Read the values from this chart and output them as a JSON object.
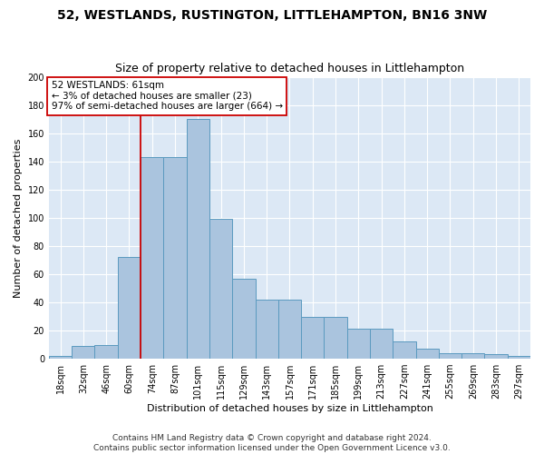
{
  "title": "52, WESTLANDS, RUSTINGTON, LITTLEHAMPTON, BN16 3NW",
  "subtitle": "Size of property relative to detached houses in Littlehampton",
  "xlabel": "Distribution of detached houses by size in Littlehampton",
  "ylabel": "Number of detached properties",
  "footer_line1": "Contains HM Land Registry data © Crown copyright and database right 2024.",
  "footer_line2": "Contains public sector information licensed under the Open Government Licence v3.0.",
  "annotation_line1": "52 WESTLANDS: 61sqm",
  "annotation_line2": "← 3% of detached houses are smaller (23)",
  "annotation_line3": "97% of semi-detached houses are larger (664) →",
  "bin_labels": [
    "18sqm",
    "32sqm",
    "46sqm",
    "60sqm",
    "74sqm",
    "87sqm",
    "101sqm",
    "115sqm",
    "129sqm",
    "143sqm",
    "157sqm",
    "171sqm",
    "185sqm",
    "199sqm",
    "213sqm",
    "227sqm",
    "241sqm",
    "255sqm",
    "269sqm",
    "283sqm",
    "297sqm"
  ],
  "bar_values": [
    2,
    9,
    10,
    72,
    143,
    143,
    170,
    99,
    57,
    42,
    42,
    30,
    30,
    21,
    21,
    12,
    7,
    4,
    4,
    3,
    2
  ],
  "bar_color": "#aac4de",
  "bar_edge_color": "#5a9abf",
  "vline_x_bin": 3.5,
  "vline_color": "#cc0000",
  "background_color": "#dce8f5",
  "grid_color": "#ffffff",
  "ylim": [
    0,
    200
  ],
  "yticks": [
    0,
    20,
    40,
    60,
    80,
    100,
    120,
    140,
    160,
    180,
    200
  ],
  "title_fontsize": 10,
  "subtitle_fontsize": 9,
  "label_fontsize": 8,
  "tick_fontsize": 7,
  "footer_fontsize": 6.5,
  "annotation_fontsize": 7.5
}
